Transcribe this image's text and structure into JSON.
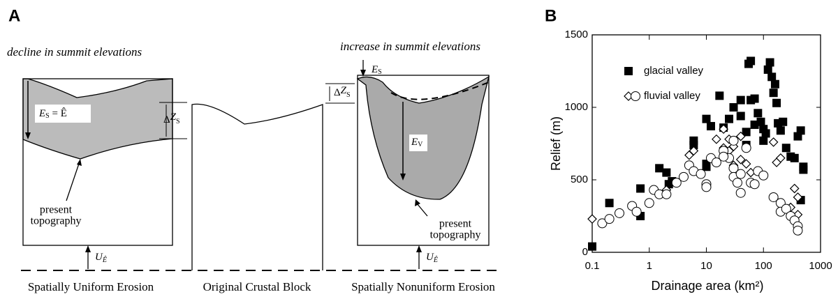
{
  "diagram": {
    "panel_label": "A",
    "left_heading": "decline in summit elevations",
    "right_heading": "increase in summit elevations",
    "uniform_erosion_label": {
      "symbol": "E",
      "subscript": "S",
      "rest": " = Ê"
    },
    "delta_label": {
      "symbol": "Δ",
      "main": "Z",
      "subscript": "S"
    },
    "present_topography": [
      "present",
      "topography"
    ],
    "uplift_label": {
      "symbol": "U",
      "subscript": "Ê"
    },
    "summit_erosion_label": {
      "symbol": "E",
      "subscript": "S"
    },
    "valley_erosion_label": {
      "symbol": "E",
      "subscript": "V"
    },
    "captions": [
      "Spatially Uniform Erosion",
      "Original Crustal Block",
      "Spatially Nonuniform Erosion"
    ]
  },
  "chart_data": {
    "type": "scatter",
    "panel_label": "B",
    "x_label": "Drainage area (km²)",
    "y_label": "Relief (m)",
    "xscale": "log",
    "xlim": [
      0.1,
      1000
    ],
    "ylim": [
      0,
      1500
    ],
    "xticks": [
      0.1,
      1,
      10,
      100,
      1000
    ],
    "yticks": [
      0,
      500,
      1000,
      1500
    ],
    "legend": "upper left",
    "series": [
      {
        "name": "glacial valley",
        "color": "#000000",
        "marker": "square",
        "x": [
          0.1,
          0.2,
          0.7,
          0.7,
          1.5,
          2,
          2.2,
          2.5,
          6,
          6,
          10,
          10,
          12,
          10,
          17,
          20,
          25,
          30,
          40,
          40,
          50,
          50,
          55,
          60,
          60,
          70,
          70,
          80,
          90,
          100,
          110,
          120,
          130,
          140,
          150,
          160,
          170,
          180,
          200,
          220,
          250,
          300,
          350,
          400,
          450,
          500,
          500,
          450,
          100
        ],
        "values": [
          40,
          340,
          440,
          250,
          580,
          550,
          470,
          490,
          740,
          770,
          610,
          590,
          870,
          920,
          1080,
          860,
          920,
          1000,
          1050,
          940,
          830,
          740,
          1300,
          1320,
          1050,
          1060,
          880,
          960,
          900,
          850,
          820,
          1260,
          1310,
          1210,
          1100,
          1160,
          1030,
          890,
          840,
          900,
          720,
          660,
          650,
          800,
          840,
          590,
          570,
          360,
          770
        ]
      },
      {
        "name": "fluvial valley",
        "color": "#000000",
        "marker": "diamond",
        "x": [
          0.1,
          2,
          5,
          6,
          15,
          20,
          20,
          25,
          30,
          40,
          50,
          60,
          150,
          170,
          200,
          350,
          400,
          300,
          400,
          350,
          25,
          12,
          30,
          40
        ],
        "values": [
          230,
          430,
          670,
          700,
          780,
          720,
          850,
          700,
          730,
          640,
          610,
          550,
          760,
          620,
          650,
          440,
          380,
          310,
          260,
          220,
          780,
          650,
          600,
          800
        ]
      },
      {
        "color": "#000000",
        "marker": "circle",
        "x": [
          0.15,
          0.2,
          0.3,
          0.5,
          0.6,
          1,
          1.2,
          1.5,
          2,
          3,
          4,
          5,
          6,
          8,
          10,
          10,
          12,
          15,
          20,
          25,
          30,
          30,
          35,
          40,
          40,
          50,
          60,
          70,
          80,
          100,
          150,
          200,
          200,
          250,
          300,
          350,
          400,
          400,
          20,
          30
        ],
        "values": [
          200,
          230,
          270,
          320,
          280,
          340,
          430,
          400,
          400,
          480,
          520,
          600,
          560,
          540,
          470,
          450,
          650,
          620,
          700,
          650,
          580,
          520,
          480,
          540,
          410,
          720,
          480,
          470,
          560,
          530,
          380,
          340,
          280,
          300,
          250,
          220,
          180,
          150,
          660,
          770
        ]
      }
    ]
  }
}
